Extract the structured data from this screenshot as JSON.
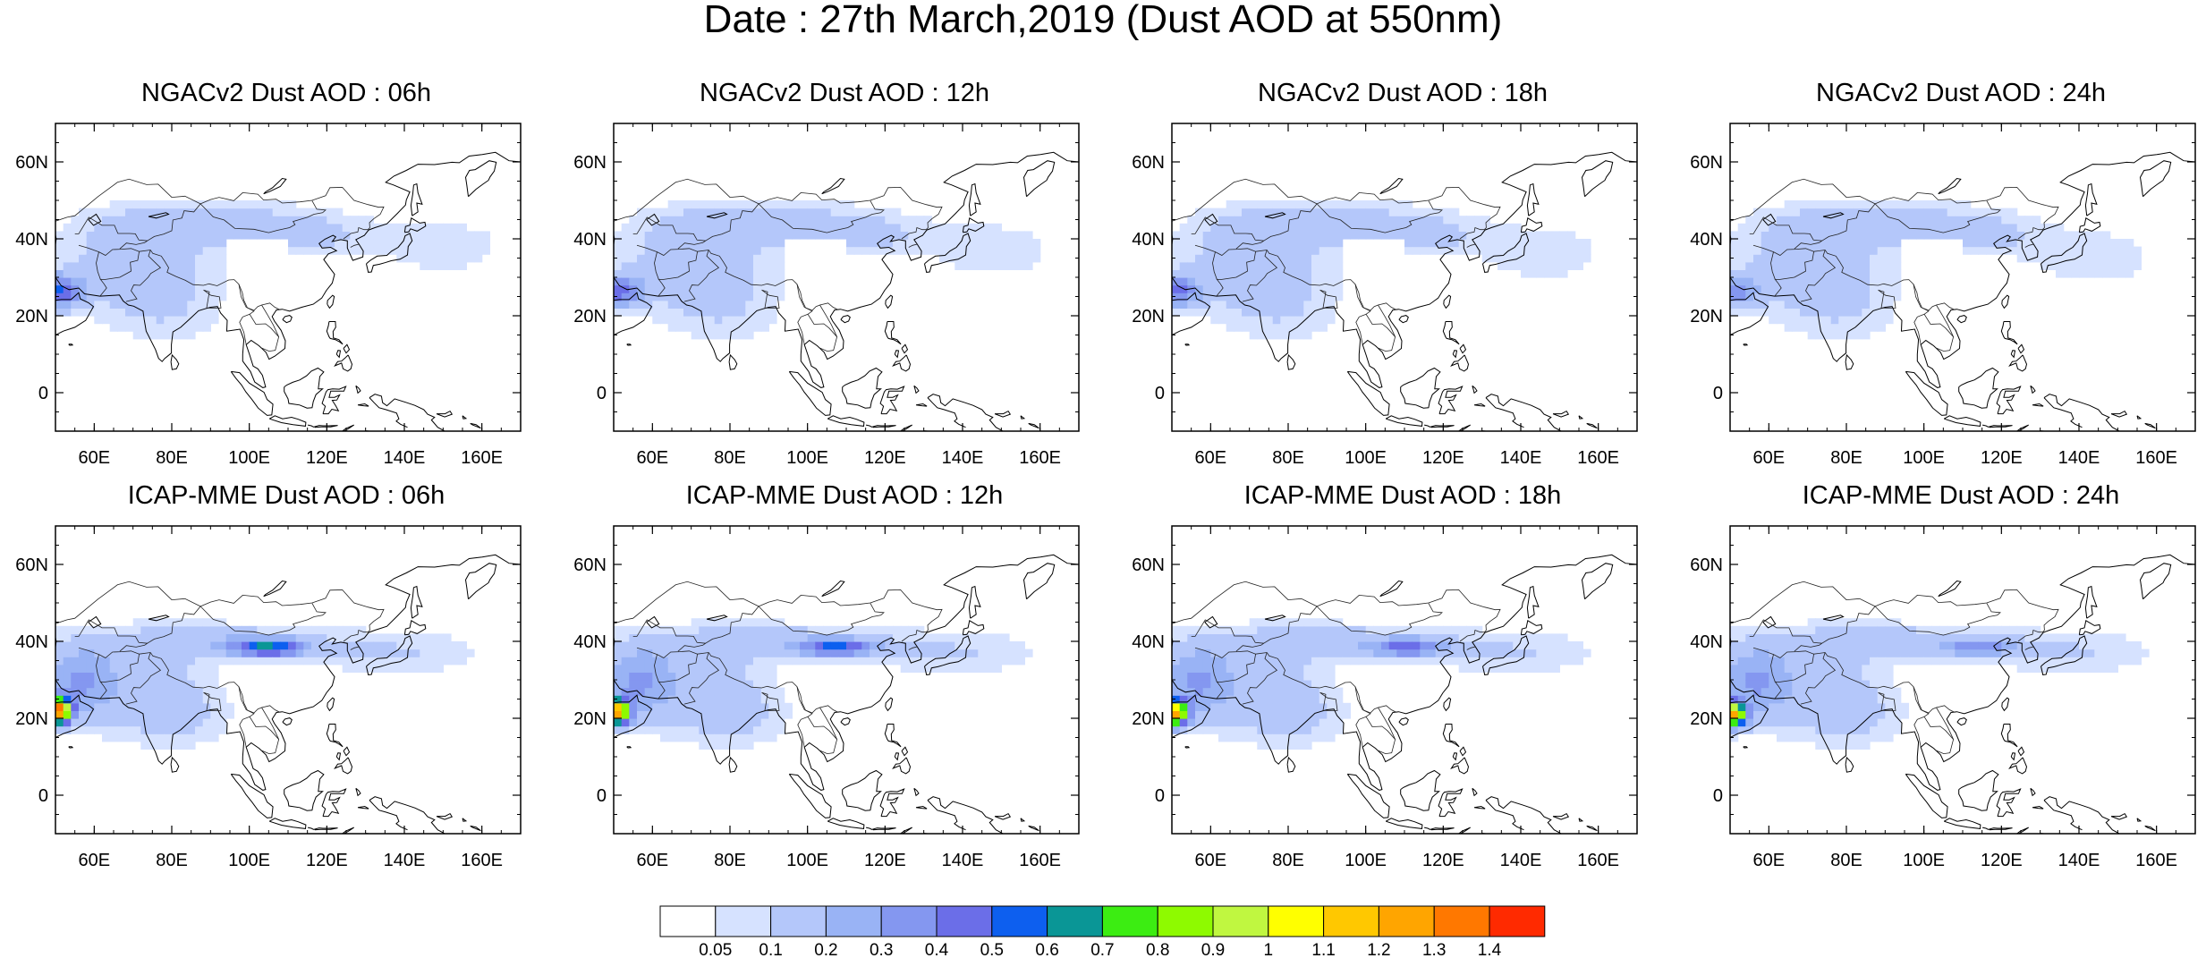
{
  "title": "Date : 27th March,2019 (Dust AOD at 550nm)",
  "map_extent": {
    "lon": [
      50,
      170
    ],
    "lat": [
      -10,
      70
    ]
  },
  "lat_ticks": [
    "60N",
    "40N",
    "20N",
    "0"
  ],
  "lat_tick_values": [
    60,
    40,
    20,
    0
  ],
  "lon_ticks": [
    "60E",
    "80E",
    "100E",
    "120E",
    "140E",
    "160E"
  ],
  "lon_tick_values": [
    60,
    80,
    100,
    120,
    140,
    160
  ],
  "panels": [
    {
      "title": "NGACv2 Dust AOD : 06h",
      "model": "NGACv2",
      "hour": "06h"
    },
    {
      "title": "NGACv2 Dust AOD : 12h",
      "model": "NGACv2",
      "hour": "12h"
    },
    {
      "title": "NGACv2 Dust AOD : 18h",
      "model": "NGACv2",
      "hour": "18h"
    },
    {
      "title": "NGACv2 Dust AOD : 24h",
      "model": "NGACv2",
      "hour": "24h"
    },
    {
      "title": "ICAP-MME Dust AOD : 06h",
      "model": "ICAP-MME",
      "hour": "06h"
    },
    {
      "title": "ICAP-MME Dust AOD : 12h",
      "model": "ICAP-MME",
      "hour": "12h"
    },
    {
      "title": "ICAP-MME Dust AOD : 18h",
      "model": "ICAP-MME",
      "hour": "18h"
    },
    {
      "title": "ICAP-MME Dust AOD : 24h",
      "model": "ICAP-MME",
      "hour": "24h"
    }
  ],
  "colorbar": {
    "labels": [
      "0.05",
      "0.1",
      "0.2",
      "0.3",
      "0.4",
      "0.5",
      "0.6",
      "0.7",
      "0.8",
      "0.9",
      "1",
      "1.1",
      "1.2",
      "1.3",
      "1.4"
    ],
    "colors": [
      "#ffffff",
      "#d6e2ff",
      "#b4c7fa",
      "#99b3f5",
      "#8497f0",
      "#6b6ee8",
      "#0d5fef",
      "#0a9696",
      "#3ced12",
      "#8efa00",
      "#c0f740",
      "#ffff00",
      "#ffc800",
      "#ffa500",
      "#ff7800",
      "#ff2a00"
    ]
  }
}
